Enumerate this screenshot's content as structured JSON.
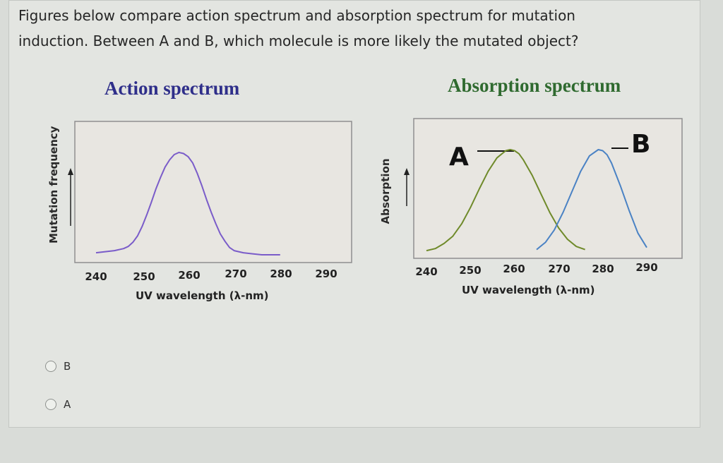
{
  "question": {
    "line1": "Figures below compare action spectrum and absorption spectrum for mutation",
    "line2": "induction. Between A and B, which molecule is more likely the mutated object?"
  },
  "chart_data": [
    {
      "type": "line",
      "title": "Action spectrum",
      "xlabel": "UV wavelength (λ-nm)",
      "ylabel": "Mutation frequency",
      "x_ticks": [
        "240",
        "250",
        "260",
        "270",
        "280",
        "290"
      ],
      "xlim": [
        240,
        290
      ],
      "grid": false,
      "series": [
        {
          "color": "#7a5cc9",
          "x": [
            240,
            242,
            244,
            246,
            247,
            248,
            249,
            250,
            251,
            252,
            253,
            254,
            255,
            256,
            257,
            258,
            259,
            260,
            261,
            262,
            263,
            264,
            265,
            266,
            267,
            268,
            269,
            270,
            272,
            274,
            276,
            278,
            280
          ],
          "y": [
            0.04,
            0.05,
            0.06,
            0.08,
            0.1,
            0.14,
            0.2,
            0.29,
            0.4,
            0.52,
            0.65,
            0.76,
            0.86,
            0.93,
            0.98,
            1.0,
            0.99,
            0.96,
            0.9,
            0.8,
            0.68,
            0.55,
            0.43,
            0.32,
            0.22,
            0.15,
            0.09,
            0.06,
            0.04,
            0.03,
            0.02,
            0.02,
            0.02
          ]
        }
      ]
    },
    {
      "type": "line",
      "title": "Absorption spectrum",
      "xlabel": "UV wavelength (λ-nm)",
      "ylabel": "Absorption",
      "x_ticks": [
        "240",
        "250",
        "260",
        "270",
        "280",
        "290"
      ],
      "xlim": [
        240,
        290
      ],
      "grid": false,
      "series": [
        {
          "name": "A",
          "color": "#6f8a2a",
          "x": [
            240,
            242,
            244,
            246,
            248,
            250,
            252,
            254,
            256,
            258,
            259,
            260,
            261,
            262,
            264,
            266,
            268,
            270,
            272,
            274,
            276
          ],
          "y": [
            0.02,
            0.04,
            0.09,
            0.16,
            0.28,
            0.44,
            0.62,
            0.79,
            0.92,
            0.99,
            1.0,
            0.99,
            0.96,
            0.9,
            0.75,
            0.57,
            0.39,
            0.24,
            0.13,
            0.06,
            0.03
          ]
        },
        {
          "name": "B",
          "color": "#4a82c4",
          "x": [
            265,
            267,
            269,
            271,
            273,
            275,
            277,
            279,
            280,
            281,
            282,
            284,
            286,
            288,
            290
          ],
          "y": [
            0.03,
            0.1,
            0.22,
            0.39,
            0.59,
            0.79,
            0.94,
            1.0,
            0.99,
            0.95,
            0.87,
            0.65,
            0.41,
            0.19,
            0.05
          ]
        }
      ]
    }
  ],
  "options": [
    {
      "label": "B"
    },
    {
      "label": "A"
    }
  ]
}
